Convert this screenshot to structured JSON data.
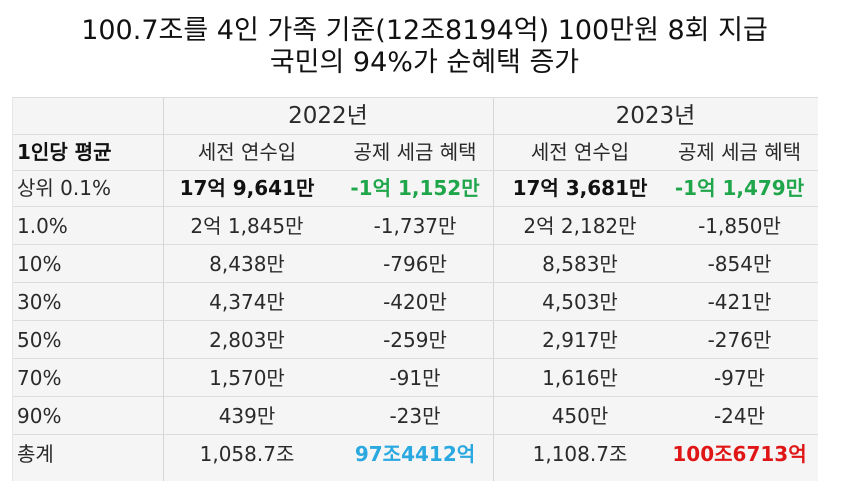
{
  "title": {
    "line1": "100.7조를 4인 가족 기준(12조8194억) 100만원 8회 지급",
    "line2": "국민의 94%가 순혜택 증가"
  },
  "table": {
    "years": [
      "2022년",
      "2023년"
    ],
    "header": [
      "1인당 평균",
      "세전 연수입",
      "공제 세금 혜택",
      "세전 연수입",
      "공제 세금 혜택"
    ],
    "rows": [
      {
        "label": "상위 0.1%",
        "inc2022": "17억 9,641만",
        "ben2022": "-1억 1,152만",
        "inc2023": "17억 3,681만",
        "ben2023": "-1억 1,479만"
      },
      {
        "label": "1.0%",
        "inc2022": "2억 1,845만",
        "ben2022": "-1,737만",
        "inc2023": "2억 2,182만",
        "ben2023": "-1,850만"
      },
      {
        "label": "10%",
        "inc2022": "8,438만",
        "ben2022": "-796만",
        "inc2023": "8,583만",
        "ben2023": "-854만"
      },
      {
        "label": "30%",
        "inc2022": "4,374만",
        "ben2022": "-420만",
        "inc2023": "4,503만",
        "ben2023": "-421만"
      },
      {
        "label": "50%",
        "inc2022": "2,803만",
        "ben2022": "-259만",
        "inc2023": "2,917만",
        "ben2023": "-276만"
      },
      {
        "label": "70%",
        "inc2022": "1,570만",
        "ben2022": "-91만",
        "inc2023": "1,616만",
        "ben2023": "-97만"
      },
      {
        "label": "90%",
        "inc2022": "439만",
        "ben2022": "-23만",
        "inc2023": "450만",
        "ben2023": "-24만"
      },
      {
        "label": "총계",
        "inc2022": "1,058.7조",
        "ben2022": "97조4412억",
        "inc2023": "1,108.7조",
        "ben2023": "100조6713억"
      }
    ]
  },
  "colors": {
    "green": "#1fa64b",
    "blue": "#2aa8e0",
    "red": "#e01616"
  }
}
